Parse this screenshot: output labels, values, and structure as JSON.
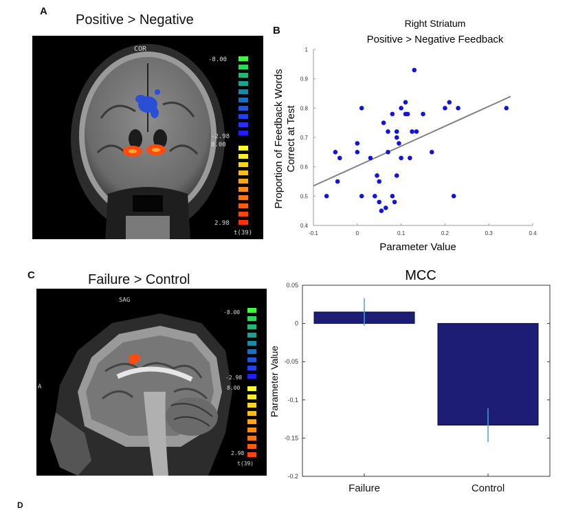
{
  "figure": {
    "panel_a": {
      "letter": "A",
      "title": "Positive > Negative",
      "view_label": "COR",
      "colorbar_labels": [
        "-8.00",
        "-2.98",
        "8.00",
        "2.98"
      ],
      "stat_label": "t(39)",
      "colors": {
        "blue_blob": "#2a4fd6",
        "orange_blob": "#ff4a10"
      }
    },
    "panel_c": {
      "letter": "C",
      "title": "Failure > Control",
      "view_label": "SAG",
      "side_label": "A",
      "colorbar_labels": [
        "-8.00",
        "-2.98",
        "8.00",
        "2.98"
      ],
      "stat_label": "t(39)"
    },
    "panel_b_letter": "B",
    "panel_d_letter": "D"
  },
  "chart_data": [
    {
      "type": "scatter",
      "title": "Right Striatum",
      "subtitle": "Positive > Negative Feedback",
      "xlabel": "Parameter Value",
      "ylabel": "Proportion of Feedback Words Correct at Test",
      "ylabel_lines": [
        "Proportion of Feedback Words",
        "Correct at Test"
      ],
      "xlim": [
        -0.1,
        0.4
      ],
      "ylim": [
        0.4,
        1.0
      ],
      "xticks": [
        "-0.1",
        "0",
        "0.1",
        "0.2",
        "0.3",
        "0.4"
      ],
      "yticks": [
        "0.4",
        "0.5",
        "0.6",
        "0.7",
        "0.8",
        "0.9",
        "1"
      ],
      "points": [
        [
          -0.07,
          0.5
        ],
        [
          -0.05,
          0.65
        ],
        [
          -0.04,
          0.63
        ],
        [
          -0.045,
          0.55
        ],
        [
          0.0,
          0.68
        ],
        [
          0.0,
          0.65
        ],
        [
          0.01,
          0.8
        ],
        [
          0.01,
          0.5
        ],
        [
          0.03,
          0.63
        ],
        [
          0.04,
          0.5
        ],
        [
          0.045,
          0.57
        ],
        [
          0.05,
          0.55
        ],
        [
          0.05,
          0.48
        ],
        [
          0.055,
          0.45
        ],
        [
          0.06,
          0.75
        ],
        [
          0.065,
          0.46
        ],
        [
          0.07,
          0.72
        ],
        [
          0.07,
          0.65
        ],
        [
          0.08,
          0.78
        ],
        [
          0.08,
          0.5
        ],
        [
          0.085,
          0.48
        ],
        [
          0.09,
          0.7
        ],
        [
          0.09,
          0.72
        ],
        [
          0.09,
          0.57
        ],
        [
          0.095,
          0.68
        ],
        [
          0.1,
          0.8
        ],
        [
          0.1,
          0.63
        ],
        [
          0.11,
          0.82
        ],
        [
          0.11,
          0.78
        ],
        [
          0.115,
          0.78
        ],
        [
          0.12,
          0.63
        ],
        [
          0.125,
          0.72
        ],
        [
          0.13,
          0.93
        ],
        [
          0.135,
          0.72
        ],
        [
          0.15,
          0.78
        ],
        [
          0.17,
          0.65
        ],
        [
          0.2,
          0.8
        ],
        [
          0.21,
          0.82
        ],
        [
          0.22,
          0.5
        ],
        [
          0.23,
          0.8
        ],
        [
          0.34,
          0.8
        ]
      ],
      "fit_line": [
        [
          -0.1,
          0.535
        ],
        [
          0.35,
          0.84
        ]
      ],
      "colors": {
        "points": "#1414d9",
        "line": "#808080"
      }
    },
    {
      "type": "bar",
      "title": "MCC",
      "xlabel": "",
      "ylabel": "Parameter Value",
      "categories": [
        "Failure",
        "Control"
      ],
      "values": [
        0.015,
        -0.133
      ],
      "errors": [
        0.018,
        0.022
      ],
      "ylim": [
        -0.2,
        0.05
      ],
      "yticks": [
        "0.05",
        "0",
        "-0.05",
        "-0.1",
        "-0.15",
        "-0.2"
      ],
      "colors": {
        "bar": "#1d1d75",
        "error": "#3ea6d6"
      }
    }
  ]
}
